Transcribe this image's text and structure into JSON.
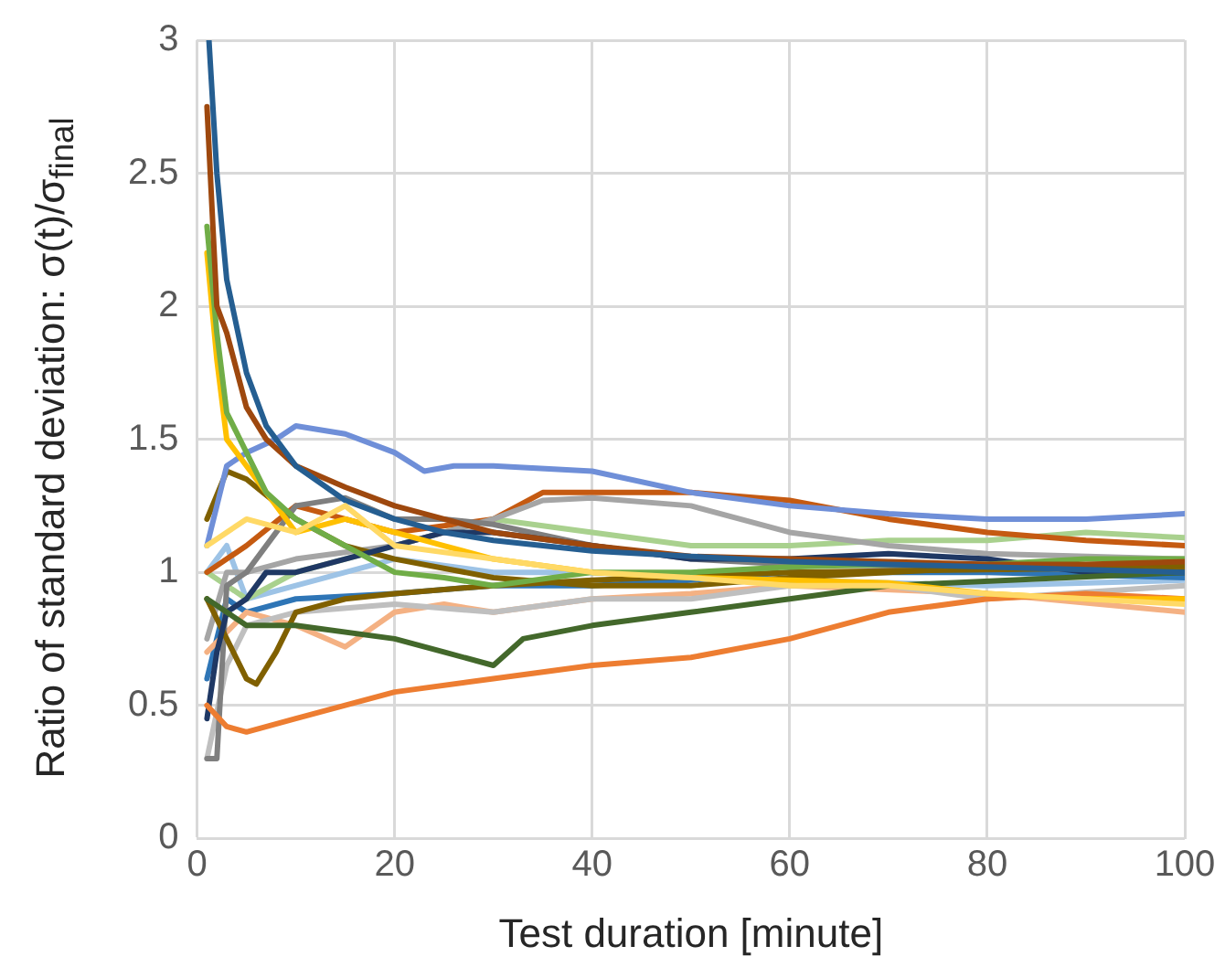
{
  "chart_data": {
    "type": "line",
    "xlabel": "Test duration [minute]",
    "ylabel": "Ratio of standard deviation: σ(t)/σ$_{final}$",
    "xlim": [
      0,
      100
    ],
    "xticks": [
      0,
      20,
      40,
      60,
      80,
      100
    ],
    "ylim": [
      0,
      3
    ],
    "yticks": [
      0,
      0.5,
      1,
      1.5,
      2,
      2.5,
      3
    ],
    "grid": true,
    "legend": false,
    "marker": "none",
    "line_style": "solid",
    "series": [
      {
        "color": "#ffd966",
        "x": [
          1,
          5,
          10,
          15,
          20,
          30,
          40,
          50,
          60,
          70,
          80,
          90,
          100
        ],
        "values": [
          1.1,
          1.2,
          1.15,
          1.25,
          1.1,
          1.05,
          1.0,
          0.98,
          0.95,
          0.95,
          0.92,
          0.9,
          0.88
        ]
      },
      {
        "color": "#255e91",
        "x": [
          1.2,
          2,
          3,
          5,
          7,
          10,
          15,
          20,
          25,
          30,
          40,
          50,
          60,
          70,
          80,
          90,
          100
        ],
        "values": [
          3.0,
          2.5,
          2.1,
          1.75,
          1.55,
          1.4,
          1.27,
          1.2,
          1.15,
          1.12,
          1.08,
          1.06,
          1.04,
          1.03,
          1.02,
          1.01,
          1.0
        ]
      },
      {
        "color": "#9e480e",
        "x": [
          1,
          2,
          3,
          5,
          7,
          10,
          15,
          20,
          25,
          30,
          40,
          50,
          60,
          70,
          80,
          90,
          100
        ],
        "values": [
          2.75,
          2.0,
          1.9,
          1.62,
          1.5,
          1.4,
          1.32,
          1.25,
          1.2,
          1.15,
          1.1,
          1.06,
          1.05,
          1.04,
          1.03,
          1.03,
          1.04
        ]
      },
      {
        "color": "#70ad47",
        "x": [
          1,
          2,
          3,
          5,
          7,
          10,
          15,
          20,
          25,
          30,
          40,
          50,
          60,
          70,
          80,
          90,
          100
        ],
        "values": [
          2.3,
          1.9,
          1.6,
          1.45,
          1.3,
          1.2,
          1.1,
          1.0,
          0.98,
          0.95,
          1.0,
          1.0,
          1.02,
          1.03,
          1.03,
          1.05,
          1.05
        ]
      },
      {
        "color": "#ffc000",
        "x": [
          1,
          2,
          3,
          5,
          7,
          10,
          15,
          20,
          25,
          30,
          40,
          50,
          60,
          70,
          80,
          90,
          100
        ],
        "values": [
          2.2,
          1.8,
          1.5,
          1.4,
          1.3,
          1.15,
          1.2,
          1.15,
          1.1,
          1.05,
          1.0,
          0.98,
          0.97,
          0.96,
          0.92,
          0.9,
          0.9
        ]
      },
      {
        "color": "#6f8fd8",
        "x": [
          1,
          3,
          5,
          8,
          10,
          15,
          20,
          23,
          26,
          30,
          40,
          50,
          60,
          70,
          80,
          90,
          100
        ],
        "values": [
          1.1,
          1.4,
          1.45,
          1.5,
          1.55,
          1.52,
          1.45,
          1.38,
          1.4,
          1.4,
          1.38,
          1.3,
          1.25,
          1.22,
          1.2,
          1.2,
          1.22
        ]
      },
      {
        "color": "#ed7d31",
        "x": [
          1,
          3,
          5,
          10,
          15,
          20,
          30,
          40,
          50,
          60,
          70,
          80,
          90,
          100
        ],
        "values": [
          0.5,
          0.42,
          0.4,
          0.45,
          0.5,
          0.55,
          0.6,
          0.65,
          0.68,
          0.75,
          0.85,
          0.9,
          0.92,
          0.9
        ]
      },
      {
        "color": "#43682b",
        "x": [
          1,
          5,
          10,
          20,
          25,
          30,
          33,
          40,
          50,
          60,
          70,
          100
        ],
        "values": [
          0.9,
          0.8,
          0.8,
          0.75,
          0.7,
          0.65,
          0.75,
          0.8,
          0.85,
          0.9,
          0.95,
          1.0
        ]
      },
      {
        "color": "#1f3864",
        "x": [
          1,
          2,
          3,
          5,
          7,
          10,
          15,
          20,
          25,
          30,
          40,
          50,
          60,
          70,
          80,
          90,
          100
        ],
        "values": [
          0.45,
          0.7,
          0.85,
          0.9,
          1.0,
          1.0,
          1.05,
          1.1,
          1.15,
          1.15,
          1.1,
          1.05,
          1.05,
          1.07,
          1.05,
          1.0,
          1.0
        ]
      },
      {
        "color": "#7f6000",
        "x": [
          1,
          3,
          5,
          10,
          15,
          20,
          30,
          40,
          50,
          60,
          70,
          80,
          100
        ],
        "values": [
          1.2,
          1.38,
          1.35,
          1.2,
          1.1,
          1.05,
          0.98,
          0.95,
          0.95,
          0.98,
          1.0,
          1.02,
          1.03
        ]
      },
      {
        "color": "#806000",
        "x": [
          1,
          3,
          5,
          6,
          8,
          10,
          15,
          20,
          30,
          40,
          60,
          100
        ],
        "values": [
          0.9,
          0.75,
          0.6,
          0.58,
          0.7,
          0.85,
          0.9,
          0.92,
          0.95,
          0.97,
          1.0,
          1.02
        ]
      },
      {
        "color": "#7f7f7f",
        "x": [
          1,
          2,
          3,
          5,
          10,
          15,
          20,
          25,
          30,
          40,
          50,
          60,
          80,
          100
        ],
        "values": [
          0.3,
          0.3,
          0.95,
          1.0,
          1.25,
          1.28,
          1.2,
          1.2,
          1.18,
          1.1,
          1.05,
          1.03,
          1.02,
          1.0
        ]
      },
      {
        "color": "#a5a5a5",
        "x": [
          1,
          3,
          5,
          10,
          20,
          30,
          35,
          40,
          50,
          60,
          70,
          80,
          100
        ],
        "values": [
          0.75,
          1.0,
          1.0,
          1.05,
          1.1,
          1.2,
          1.27,
          1.28,
          1.25,
          1.15,
          1.1,
          1.07,
          1.05
        ]
      },
      {
        "color": "#bfbfbf",
        "x": [
          1,
          3,
          5,
          10,
          20,
          30,
          40,
          50,
          60,
          70,
          80,
          100
        ],
        "values": [
          0.3,
          0.65,
          0.8,
          0.85,
          0.88,
          0.85,
          0.9,
          0.9,
          0.95,
          0.95,
          0.9,
          0.95
        ]
      },
      {
        "color": "#f4b183",
        "x": [
          1,
          5,
          10,
          15,
          20,
          25,
          30,
          40,
          50,
          60,
          80,
          100
        ],
        "values": [
          0.7,
          0.85,
          0.8,
          0.72,
          0.85,
          0.88,
          0.85,
          0.9,
          0.92,
          0.95,
          0.92,
          0.85
        ]
      },
      {
        "color": "#c55a11",
        "x": [
          1,
          5,
          10,
          20,
          30,
          35,
          40,
          50,
          60,
          70,
          80,
          90,
          100
        ],
        "values": [
          1.0,
          1.1,
          1.25,
          1.15,
          1.2,
          1.3,
          1.3,
          1.3,
          1.27,
          1.2,
          1.15,
          1.12,
          1.1
        ]
      },
      {
        "color": "#a9d18e",
        "x": [
          1,
          5,
          10,
          20,
          25,
          30,
          40,
          50,
          60,
          70,
          80,
          90,
          100
        ],
        "values": [
          1.0,
          0.9,
          1.0,
          1.1,
          1.15,
          1.2,
          1.15,
          1.1,
          1.1,
          1.12,
          1.12,
          1.15,
          1.13
        ]
      },
      {
        "color": "#2e75b6",
        "x": [
          1,
          3,
          5,
          10,
          20,
          30,
          40,
          50,
          60,
          70,
          80,
          100
        ],
        "values": [
          0.6,
          0.9,
          0.85,
          0.9,
          0.92,
          0.95,
          0.95,
          0.97,
          1.0,
          1.0,
          1.0,
          0.98
        ]
      },
      {
        "color": "#9dc3e6",
        "x": [
          1,
          3,
          5,
          10,
          15,
          20,
          30,
          40,
          50,
          60,
          80,
          100
        ],
        "values": [
          1.0,
          1.1,
          0.9,
          0.95,
          1.0,
          1.05,
          1.0,
          1.0,
          0.98,
          0.97,
          0.95,
          0.97
        ]
      }
    ]
  }
}
